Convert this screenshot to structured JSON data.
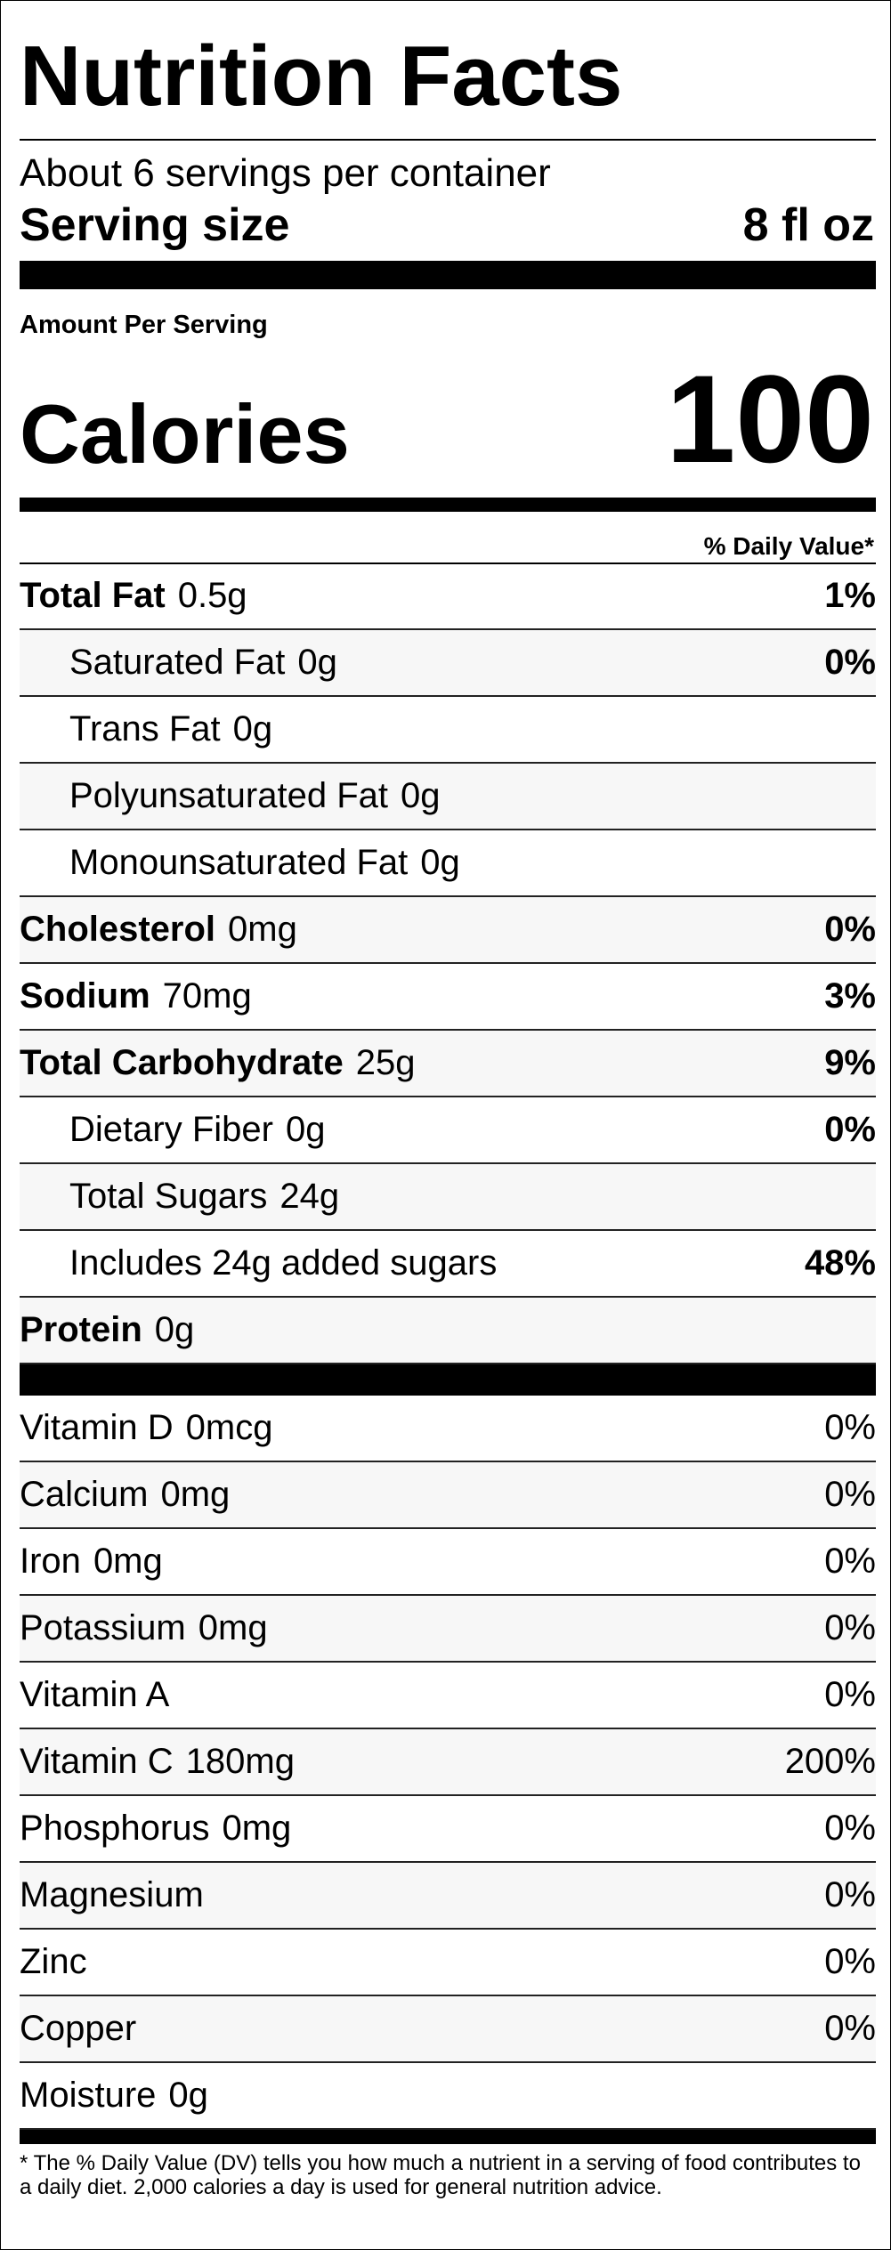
{
  "header": {
    "title": "Nutrition Facts",
    "servings": "About 6 servings per container",
    "serving_size_label": "Serving size",
    "serving_size": "8 fl oz",
    "amount_per_serving": "Amount Per Serving",
    "calories_label": "Calories",
    "calories": "100",
    "daily_value_header": "% Daily Value*"
  },
  "nutrients": [
    {
      "name": "Total Fat",
      "amount": "0.5g",
      "dv": "1%",
      "bold": true
    },
    {
      "name": "Saturated Fat",
      "amount": "0g",
      "dv": "0%",
      "indent": true
    },
    {
      "name": "Trans Fat",
      "amount": "0g",
      "indent": true
    },
    {
      "name": "Polyunsaturated Fat",
      "amount": "0g",
      "indent": true
    },
    {
      "name": "Monounsaturated Fat",
      "amount": "0g",
      "indent": true
    },
    {
      "name": "Cholesterol",
      "amount": "0mg",
      "dv": "0%",
      "bold": true
    },
    {
      "name": "Sodium",
      "amount": "70mg",
      "dv": "3%",
      "bold": true
    },
    {
      "name": "Total Carbohydrate",
      "amount": "25g",
      "dv": "9%",
      "bold": true
    },
    {
      "name": "Dietary Fiber",
      "amount": "0g",
      "dv": "0%",
      "indent": true
    },
    {
      "name": "Total Sugars",
      "amount": "24g",
      "indent": true
    },
    {
      "name": "Includes 24g added sugars",
      "dv": "48%",
      "indent": true
    },
    {
      "name": "Protein",
      "amount": "0g",
      "bold": true
    }
  ],
  "vitamins": [
    {
      "name": "Vitamin D",
      "amount": "0mcg",
      "dv": "0%"
    },
    {
      "name": "Calcium",
      "amount": "0mg",
      "dv": "0%"
    },
    {
      "name": "Iron",
      "amount": "0mg",
      "dv": "0%"
    },
    {
      "name": "Potassium",
      "amount": "0mg",
      "dv": "0%"
    },
    {
      "name": "Vitamin A",
      "dv": "0%"
    },
    {
      "name": "Vitamin C",
      "amount": "180mg",
      "dv": "200%"
    },
    {
      "name": "Phosphorus",
      "amount": "0mg",
      "dv": "0%"
    },
    {
      "name": "Magnesium",
      "dv": "0%"
    },
    {
      "name": "Zinc",
      "dv": "0%"
    },
    {
      "name": "Copper",
      "dv": "0%"
    },
    {
      "name": "Moisture",
      "amount": "0g"
    }
  ],
  "footnote": "* The % Daily Value (DV) tells you how much a nutrient in a serving of food contributes to a daily diet. 2,000 calories a day is used for general nutrition advice."
}
